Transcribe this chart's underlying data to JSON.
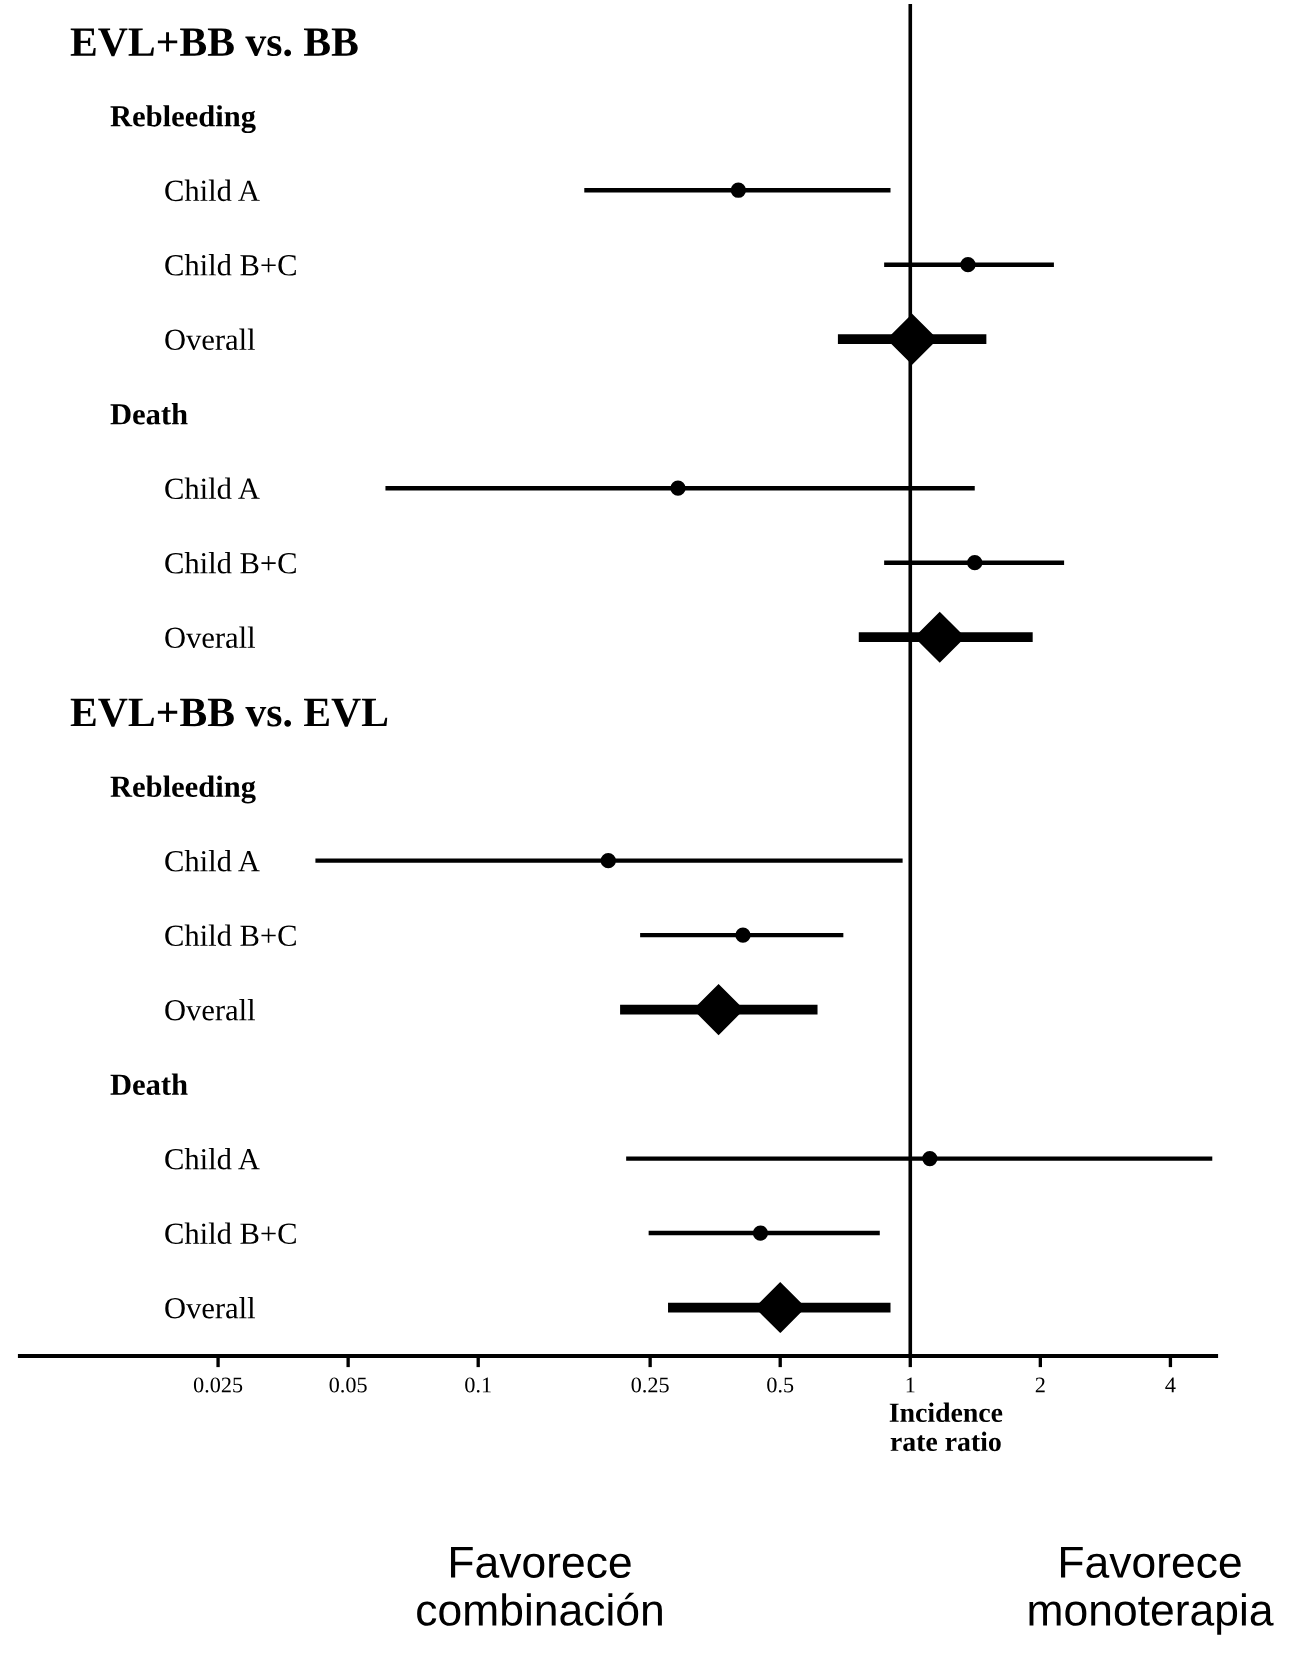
{
  "chart_data": {
    "type": "scatter",
    "orientation": "horizontal",
    "log": "x",
    "xlabel": "Incidence\nrate ratio",
    "categories": [
      "EVL+BB vs. BB",
      "Rebleeding",
      "Child A",
      "Child B+C",
      "Overall",
      "Death",
      "Child A",
      "Child B+C",
      "Overall",
      "EVL+BB vs. EVL",
      "Rebleeding",
      "Child A",
      "Child B+C",
      "Overall",
      "Death",
      "Child A",
      "Child B+C",
      "Overall"
    ],
    "xlim": [
      0.0087,
      5.1
    ],
    "xticks": [
      0.025,
      0.05,
      0.1,
      0.25,
      0.5,
      1,
      2,
      4
    ],
    "series": [
      {
        "color": "#000000",
        "marker": "circle",
        "values": [
          null,
          null,
          0.4,
          1.36,
          null,
          null,
          0.29,
          1.41,
          null,
          null,
          null,
          0.2,
          0.41,
          null,
          null,
          1.11,
          0.45,
          null
        ],
        "errors": [
          null,
          null,
          [
            0.176,
            0.9
          ],
          [
            0.87,
            2.15
          ],
          null,
          null,
          [
            0.061,
            1.41
          ],
          [
            0.87,
            2.27
          ],
          null,
          null,
          null,
          [
            0.042,
            0.96
          ],
          [
            0.237,
            0.7
          ],
          null,
          null,
          [
            0.22,
            5.0
          ],
          [
            0.248,
            0.85
          ],
          null
        ]
      },
      {
        "color": "#000000",
        "marker": "diamond",
        "values": [
          null,
          null,
          null,
          null,
          1.01,
          null,
          null,
          null,
          1.17,
          null,
          null,
          null,
          null,
          0.36,
          null,
          null,
          null,
          0.5
        ],
        "errors": [
          null,
          null,
          null,
          null,
          [
            0.68,
            1.5
          ],
          null,
          null,
          null,
          [
            0.76,
            1.92
          ],
          null,
          null,
          null,
          null,
          [
            0.213,
            0.61
          ],
          null,
          null,
          null,
          [
            0.275,
            0.9
          ]
        ]
      }
    ],
    "ref_lines": [
      {
        "axis": "x",
        "value": 1,
        "label": null,
        "color": "#000000"
      }
    ],
    "annotations": [
      "Favorece\ncombinación",
      "Favorece\nmonoterapia"
    ]
  }
}
